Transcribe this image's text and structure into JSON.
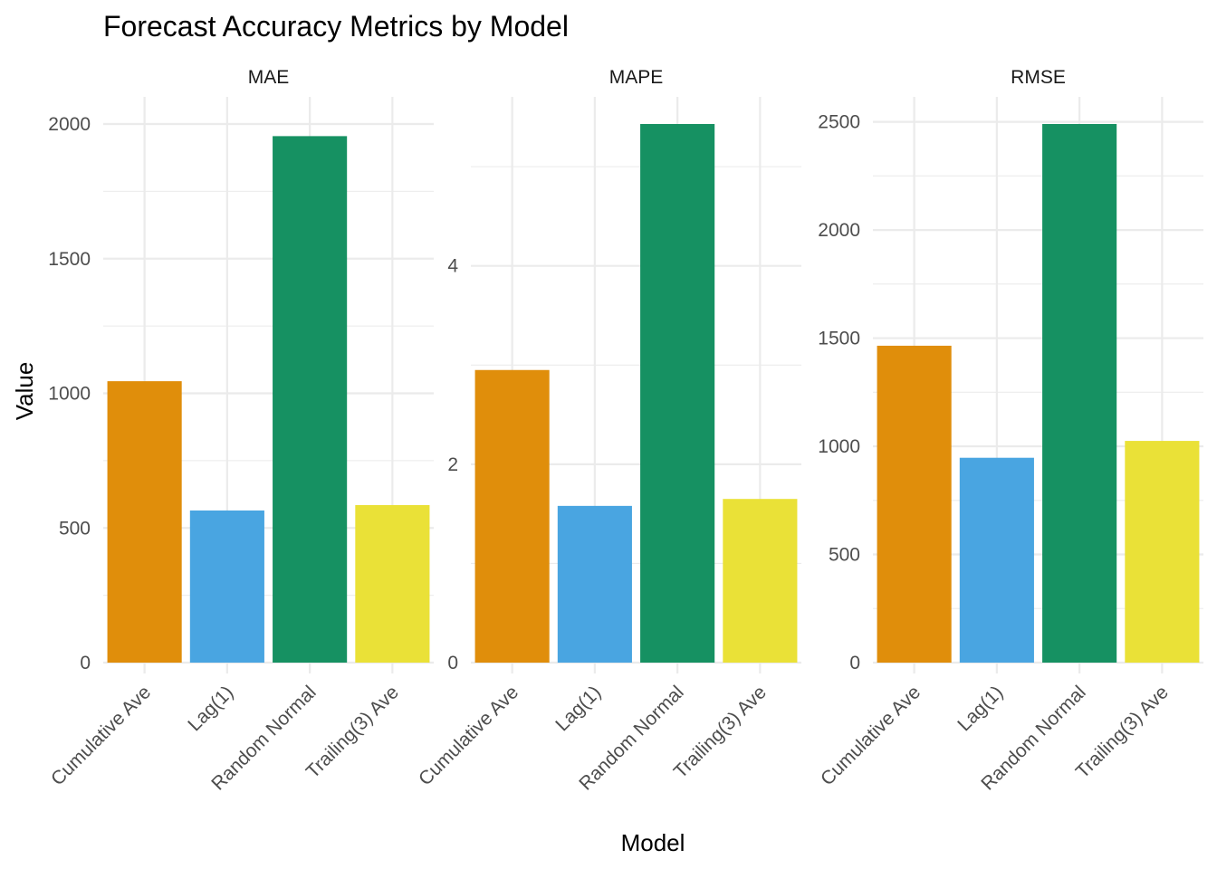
{
  "chart_data": {
    "type": "bar",
    "title": "Forecast Accuracy Metrics by Model",
    "xlabel": "Model",
    "ylabel": "Value",
    "categories": [
      "Cumulative Ave",
      "Lag(1)",
      "Random Normal",
      "Trailing(3) Ave"
    ],
    "colors": [
      "#E08E0B",
      "#49A5E1",
      "#169162",
      "#EAE137"
    ],
    "grid": true,
    "legend": "none",
    "panels": [
      {
        "name": "MAE",
        "values": [
          1045,
          565,
          1955,
          585
        ],
        "ylim": [
          0,
          2000
        ],
        "yticks": [
          0,
          500,
          1000,
          1500,
          2000
        ],
        "ytick_labels": [
          "0",
          "500",
          "1000",
          "1500",
          "2000"
        ]
      },
      {
        "name": "MAPE",
        "values": [
          2.95,
          1.58,
          5.43,
          1.65
        ],
        "ylim": [
          0,
          5.43
        ],
        "yticks": [
          0,
          2,
          4
        ],
        "ytick_labels": [
          "0",
          "2",
          "4"
        ]
      },
      {
        "name": "RMSE",
        "values": [
          1465,
          947,
          2490,
          1025
        ],
        "ylim": [
          0,
          2490
        ],
        "yticks": [
          0,
          500,
          1000,
          1500,
          2000,
          2500
        ],
        "ytick_labels": [
          "0",
          "500",
          "1000",
          "1500",
          "2000",
          "2500"
        ]
      }
    ]
  }
}
